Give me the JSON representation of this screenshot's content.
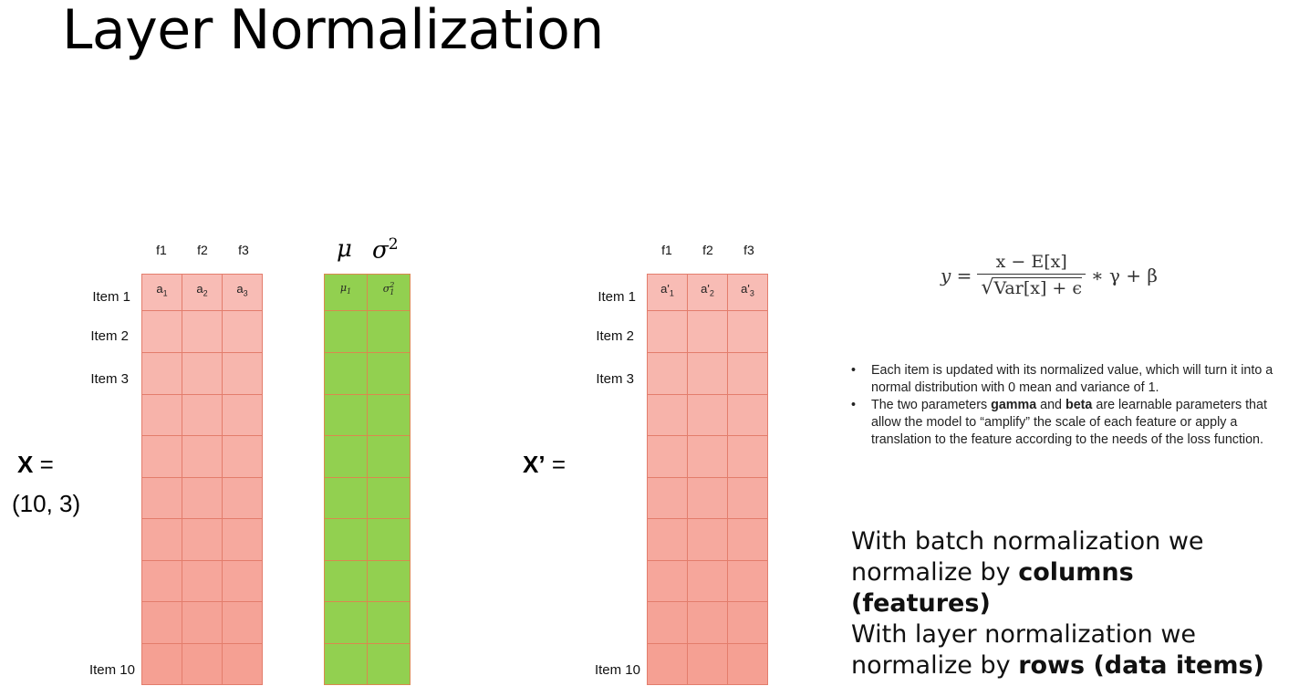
{
  "title": "Layer Normalization",
  "features": [
    "f1",
    "f2",
    "f3"
  ],
  "rows": [
    {
      "label": "Item 1"
    },
    {
      "label": "Item 2"
    },
    {
      "label": "Item 3"
    },
    {
      "label": ""
    },
    {
      "label": ""
    },
    {
      "label": ""
    },
    {
      "label": ""
    },
    {
      "label": ""
    },
    {
      "label": ""
    },
    {
      "label": "Item 10"
    }
  ],
  "left_matrix": {
    "name": "X",
    "equals": "=",
    "shape": "(10, 3)",
    "first_row": [
      {
        "base": "a",
        "sub": "1"
      },
      {
        "base": "a",
        "sub": "2"
      },
      {
        "base": "a",
        "sub": "3"
      }
    ],
    "colors": {
      "top": "#f8bcb5",
      "bottom": "#f5a093",
      "border": "#e37d6c"
    }
  },
  "stats": {
    "mu_header": "μ",
    "sigma_header": "σ",
    "sigma_header_sup": "2",
    "mu_cell": "μ",
    "mu_cell_sub": "1",
    "sigma_cell": "σ",
    "sigma_cell_sup": "2",
    "sigma_cell_sub": "1",
    "color": "#92d050"
  },
  "right_matrix": {
    "name": "X’",
    "equals": "=",
    "first_row": [
      {
        "base": "a'",
        "sub": "1"
      },
      {
        "base": "a'",
        "sub": "2"
      },
      {
        "base": "a'",
        "sub": "3"
      }
    ]
  },
  "formula": {
    "lhs": "y =",
    "numerator": "x − E[x]",
    "denominator": "Var[x] + ϵ",
    "tail": "∗ γ + β"
  },
  "notes": [
    {
      "pre": "Each item is updated with its normalized value, which will turn it into a normal distribution with 0 mean and variance of 1.",
      "b1": "",
      "mid": "",
      "b2": "",
      "post": ""
    },
    {
      "pre": "The two parameters ",
      "b1": "gamma",
      "mid": " and ",
      "b2": "beta",
      "post": " are learnable parameters that allow the model to “amplify” the scale of each feature or apply a translation to the feature according to the needs of the loss function."
    }
  ],
  "batch_note": {
    "text": "With batch normalization we normalize by ",
    "bold": "columns (features)"
  },
  "layer_note": {
    "text": "With layer normalization we normalize by ",
    "bold": "rows (data items)"
  }
}
